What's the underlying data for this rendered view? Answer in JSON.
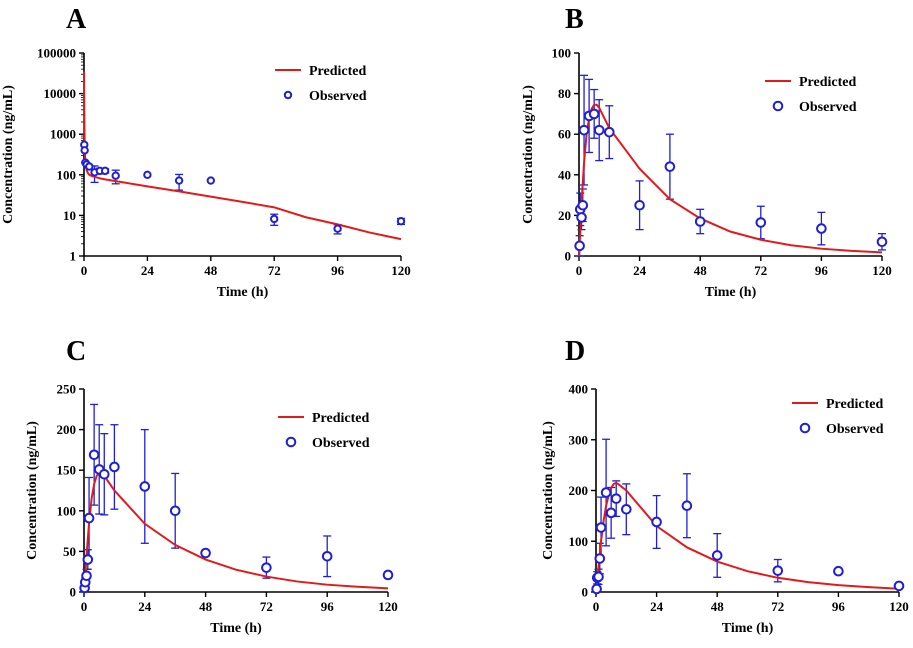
{
  "figure": {
    "series_names": {
      "predicted": "Predicted",
      "observed": "Observed"
    },
    "colors": {
      "predicted": "#e31a1c",
      "observed": "#1f1fd6",
      "axis": "#000000"
    }
  },
  "chart_data": [
    {
      "panel": "A",
      "type": "line+scatter",
      "xlabel": "Time (h)",
      "ylabel": "Concentration (ng/mL)",
      "yscale": "log",
      "xlim": [
        0,
        120
      ],
      "ylim": [
        1,
        100000
      ],
      "xticks": [
        0,
        24,
        48,
        72,
        96,
        120
      ],
      "xtick_labels": [
        "0",
        "24",
        "48",
        "72",
        "96",
        "120"
      ],
      "yticks": [
        1,
        10,
        100,
        1000,
        10000,
        100000
      ],
      "ytick_labels": [
        "1",
        "10",
        "100",
        "1000",
        "10000",
        "100000"
      ],
      "legend_position": "top-right",
      "predicted": {
        "name": "Predicted",
        "x": [
          0,
          0.05,
          0.15,
          0.3,
          0.5,
          1,
          1.5,
          2,
          3,
          4,
          6,
          8,
          12,
          24,
          36,
          48,
          60,
          72,
          84,
          96,
          108,
          120
        ],
        "y": [
          35000,
          8000,
          1400,
          400,
          200,
          130,
          110,
          100,
          93,
          89,
          82,
          77,
          70,
          52,
          39,
          29,
          21.5,
          15.8,
          9,
          6,
          3.8,
          2.6
        ]
      },
      "observed": {
        "name": "Observed",
        "points": [
          {
            "x": 0.1,
            "y": 550,
            "err": 0
          },
          {
            "x": 0.25,
            "y": 400,
            "err": 0
          },
          {
            "x": 0.5,
            "y": 200,
            "err": 0
          },
          {
            "x": 1,
            "y": 180,
            "err": 0
          },
          {
            "x": 2,
            "y": 160,
            "err": 0
          },
          {
            "x": 4,
            "y": 115,
            "err": 50
          },
          {
            "x": 6,
            "y": 125,
            "err": 20
          },
          {
            "x": 8,
            "y": 125,
            "err": 15
          },
          {
            "x": 12,
            "y": 95,
            "err": 35
          },
          {
            "x": 24,
            "y": 100,
            "err": 0
          },
          {
            "x": 36,
            "y": 72,
            "err": 30
          },
          {
            "x": 48,
            "y": 72,
            "err": 0
          },
          {
            "x": 72,
            "y": 8.2,
            "err": 2.5
          },
          {
            "x": 96,
            "y": 4.7,
            "err": 1.2
          },
          {
            "x": 120,
            "y": 7.2,
            "err": 1.2
          }
        ]
      }
    },
    {
      "panel": "B",
      "type": "line+scatter",
      "xlabel": "Time (h)",
      "ylabel": "Concentration (ng/mL)",
      "yscale": "linear",
      "xlim": [
        0,
        120
      ],
      "ylim": [
        0,
        100
      ],
      "xticks": [
        0,
        24,
        48,
        72,
        96,
        120
      ],
      "xtick_labels": [
        "0",
        "24",
        "48",
        "72",
        "96",
        "120"
      ],
      "yticks": [
        0,
        20,
        40,
        60,
        80,
        100
      ],
      "ytick_labels": [
        "0",
        "20",
        "40",
        "60",
        "80",
        "100"
      ],
      "legend_position": "top-right",
      "predicted": {
        "name": "Predicted",
        "x": [
          0,
          0.5,
          1,
          2,
          3,
          4,
          5,
          6,
          7,
          8,
          12,
          24,
          36,
          48,
          60,
          72,
          84,
          96,
          108,
          120
        ],
        "y": [
          0,
          12,
          26,
          46,
          60,
          68,
          72.5,
          74.5,
          74.5,
          73,
          63,
          43,
          28,
          18.5,
          12,
          8,
          5.3,
          3.6,
          2.5,
          1.8
        ]
      },
      "observed": {
        "name": "Observed",
        "points": [
          {
            "x": 0.25,
            "y": 5,
            "err": 5
          },
          {
            "x": 0.5,
            "y": 23,
            "err": 8
          },
          {
            "x": 1,
            "y": 19,
            "err": 6
          },
          {
            "x": 1.5,
            "y": 25,
            "err": 8
          },
          {
            "x": 2,
            "y": 62,
            "err": 27
          },
          {
            "x": 4,
            "y": 69,
            "err": 18
          },
          {
            "x": 6,
            "y": 70,
            "err": 12
          },
          {
            "x": 8,
            "y": 62,
            "err": 15
          },
          {
            "x": 12,
            "y": 61,
            "err": 13
          },
          {
            "x": 24,
            "y": 25,
            "err": 12
          },
          {
            "x": 36,
            "y": 44,
            "err": 16
          },
          {
            "x": 48,
            "y": 17,
            "err": 6
          },
          {
            "x": 72,
            "y": 16.5,
            "err": 8
          },
          {
            "x": 96,
            "y": 13.5,
            "err": 8
          },
          {
            "x": 120,
            "y": 7,
            "err": 4
          }
        ]
      }
    },
    {
      "panel": "C",
      "type": "line+scatter",
      "xlabel": "Time (h)",
      "ylabel": "Concentration (ng/mL)",
      "yscale": "linear",
      "xlim": [
        0,
        120
      ],
      "ylim": [
        0,
        250
      ],
      "xticks": [
        0,
        24,
        48,
        72,
        96,
        120
      ],
      "xtick_labels": [
        "0",
        "24",
        "48",
        "72",
        "96",
        "120"
      ],
      "yticks": [
        0,
        50,
        100,
        150,
        200,
        250
      ],
      "ytick_labels": [
        "0",
        "50",
        "100",
        "150",
        "200",
        "250"
      ],
      "legend_position": "top-right",
      "predicted": {
        "name": "Predicted",
        "x": [
          0,
          0.5,
          1,
          2,
          3,
          4,
          5,
          6,
          7,
          8,
          12,
          24,
          36,
          48,
          60,
          72,
          84,
          96,
          108,
          120
        ],
        "y": [
          0,
          20,
          45,
          85,
          115,
          133,
          143,
          147,
          146,
          143,
          125,
          84,
          58,
          40,
          27.5,
          19,
          13,
          9,
          6.5,
          4.5
        ]
      },
      "observed": {
        "name": "Observed",
        "points": [
          {
            "x": 0.25,
            "y": 5,
            "err": 3
          },
          {
            "x": 0.5,
            "y": 12,
            "err": 5
          },
          {
            "x": 1,
            "y": 20,
            "err": 8
          },
          {
            "x": 1.5,
            "y": 40,
            "err": 12
          },
          {
            "x": 2,
            "y": 91,
            "err": 50
          },
          {
            "x": 4,
            "y": 169,
            "err": 62
          },
          {
            "x": 6,
            "y": 151,
            "err": 55
          },
          {
            "x": 8,
            "y": 145,
            "err": 50
          },
          {
            "x": 12,
            "y": 154,
            "err": 52
          },
          {
            "x": 24,
            "y": 130,
            "err": 70
          },
          {
            "x": 36,
            "y": 100,
            "err": 46
          },
          {
            "x": 48,
            "y": 48,
            "err": 3
          },
          {
            "x": 72,
            "y": 30,
            "err": 13
          },
          {
            "x": 96,
            "y": 44,
            "err": 25
          },
          {
            "x": 120,
            "y": 21,
            "err": 4
          }
        ]
      }
    },
    {
      "panel": "D",
      "type": "line+scatter",
      "xlabel": "Time (h)",
      "ylabel": "Concentration (ng/mL)",
      "yscale": "linear",
      "xlim": [
        0,
        120
      ],
      "ylim": [
        0,
        400
      ],
      "xticks": [
        0,
        24,
        48,
        72,
        96,
        120
      ],
      "xtick_labels": [
        "0",
        "24",
        "48",
        "72",
        "96",
        "120"
      ],
      "yticks": [
        0,
        100,
        200,
        300,
        400
      ],
      "ytick_labels": [
        "0",
        "100",
        "200",
        "300",
        "400"
      ],
      "legend_position": "top-right",
      "predicted": {
        "name": "Predicted",
        "x": [
          0,
          0.5,
          1,
          2,
          3,
          4,
          5,
          6,
          7,
          8,
          9,
          12,
          24,
          36,
          48,
          60,
          72,
          84,
          96,
          108,
          120
        ],
        "y": [
          0,
          20,
          50,
          100,
          140,
          170,
          190,
          205,
          213,
          215,
          212,
          200,
          130,
          88,
          60,
          41,
          28,
          19.5,
          13.5,
          9.5,
          6.5
        ]
      },
      "observed": {
        "name": "Observed",
        "points": [
          {
            "x": 0.25,
            "y": 6,
            "err": 5
          },
          {
            "x": 0.5,
            "y": 28,
            "err": 12
          },
          {
            "x": 1,
            "y": 30,
            "err": 15
          },
          {
            "x": 1.5,
            "y": 66,
            "err": 30
          },
          {
            "x": 2,
            "y": 127,
            "err": 60
          },
          {
            "x": 4,
            "y": 196,
            "err": 105
          },
          {
            "x": 6,
            "y": 156,
            "err": 50
          },
          {
            "x": 8,
            "y": 184,
            "err": 35
          },
          {
            "x": 12,
            "y": 163,
            "err": 50
          },
          {
            "x": 24,
            "y": 138,
            "err": 52
          },
          {
            "x": 36,
            "y": 170,
            "err": 63
          },
          {
            "x": 48,
            "y": 72,
            "err": 43
          },
          {
            "x": 72,
            "y": 42,
            "err": 22
          },
          {
            "x": 96,
            "y": 41,
            "err": 0
          },
          {
            "x": 120,
            "y": 12,
            "err": 5
          }
        ]
      }
    }
  ]
}
